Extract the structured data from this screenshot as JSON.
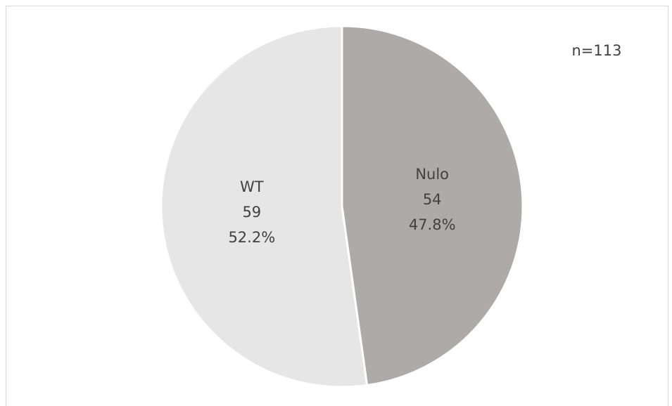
{
  "chart_data": {
    "type": "pie",
    "annotation": "n=113",
    "categories": [
      "Nulo",
      "WT"
    ],
    "values": [
      54,
      59
    ],
    "percentages": [
      {
        "value": 47.8,
        "label": "47.8%"
      },
      {
        "value": 52.2,
        "label": "52.2%"
      }
    ],
    "colors": [
      "#aeaaaa",
      "#e7e6e6"
    ]
  }
}
